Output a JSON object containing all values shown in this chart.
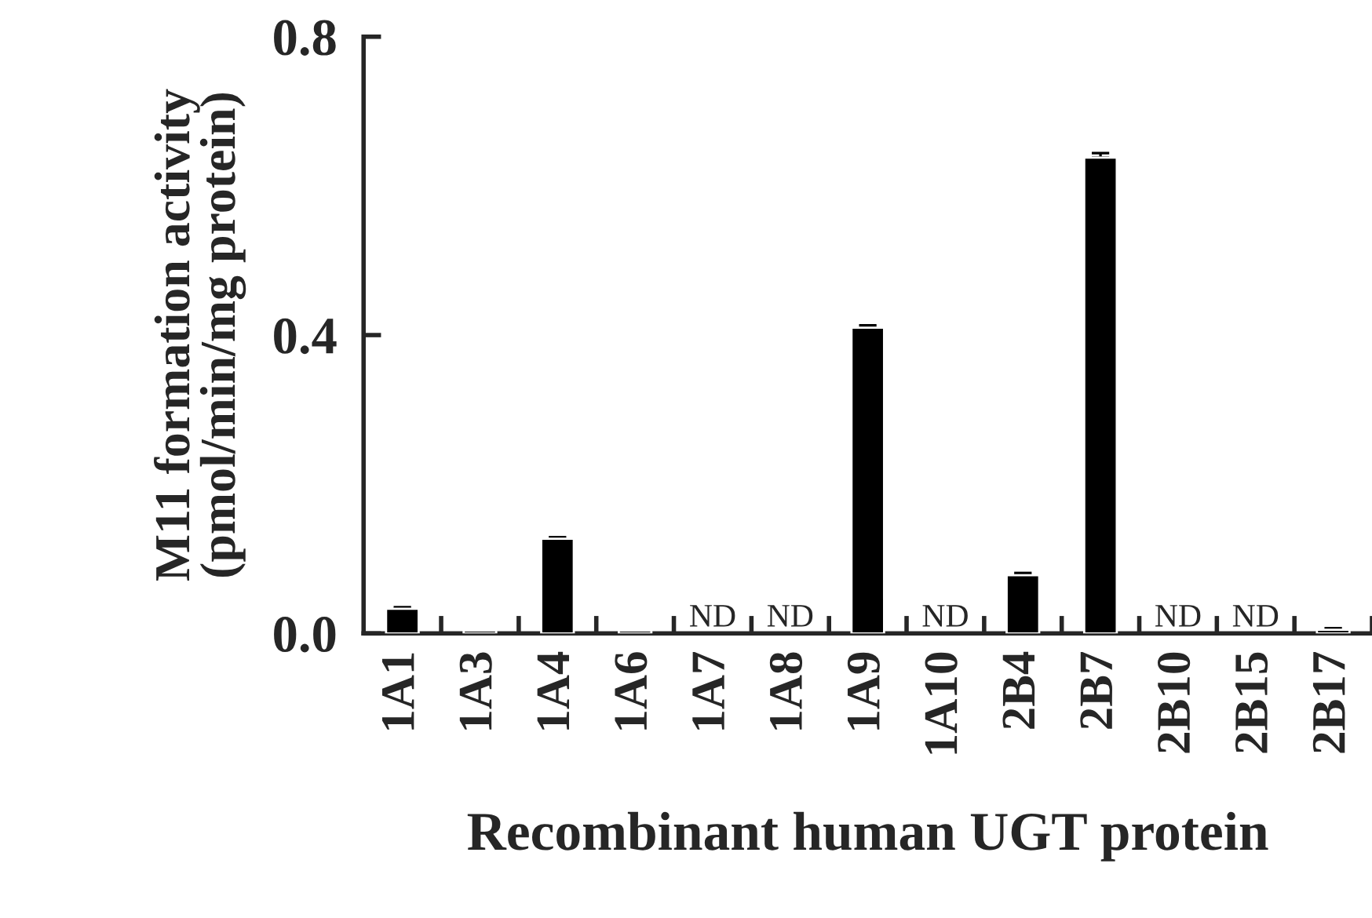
{
  "chart_data": {
    "type": "bar",
    "xlabel": "Recombinant human UGT protein",
    "ylabel": "M11 formation activity\n(pmol/min/mg protein)",
    "categories": [
      "1A1",
      "1A3",
      "1A4",
      "1A6",
      "1A7",
      "1A8",
      "1A9",
      "1A10",
      "2B4",
      "2B7",
      "2B10",
      "2B15",
      "2B17"
    ],
    "values": [
      0.033,
      0.004,
      0.127,
      0.004,
      null,
      null,
      0.41,
      null,
      0.078,
      0.638,
      null,
      null,
      0.005
    ],
    "errors": [
      0.002,
      null,
      0.002,
      null,
      null,
      null,
      0.003,
      null,
      0.003,
      0.006,
      null,
      null,
      0.002
    ],
    "value_labels": [
      null,
      null,
      null,
      null,
      "ND",
      "ND",
      null,
      "ND",
      null,
      null,
      "ND",
      "ND",
      null
    ],
    "color": "#000000",
    "ylim": [
      0,
      0.8
    ],
    "yticks": [
      {
        "value": 0,
        "label": "0.0"
      },
      0.4,
      0.8
    ],
    "grid": false
  }
}
